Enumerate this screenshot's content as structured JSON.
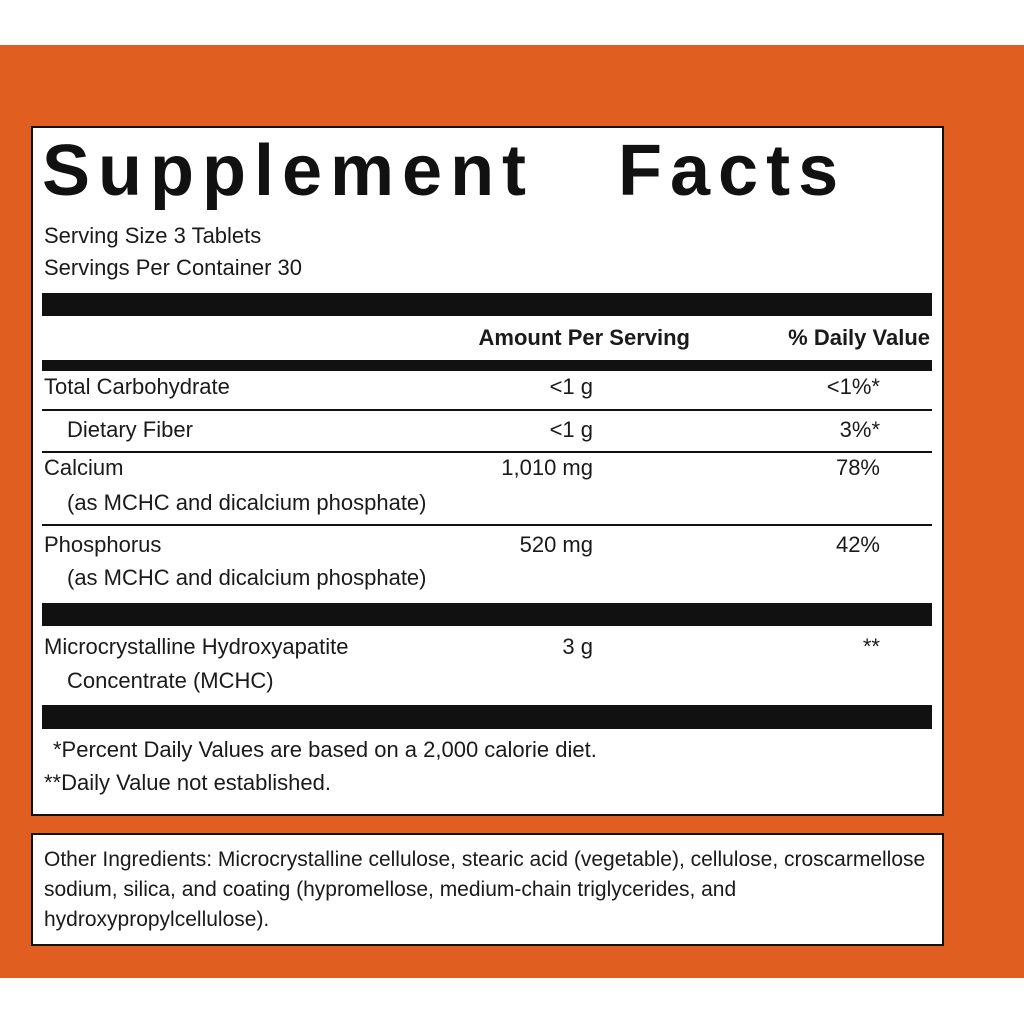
{
  "title": "Supplement Facts",
  "serving_size": "Serving Size 3 Tablets",
  "servings_per_container": "Servings Per Container 30",
  "header": {
    "amount": "Amount Per Serving",
    "daily_value": "% Daily Value"
  },
  "rows": [
    {
      "name": "Total Carbohydrate",
      "amount": "<1 g",
      "daily_value": "<1%*"
    },
    {
      "name": "Dietary Fiber",
      "amount": "<1 g",
      "daily_value": "3%*"
    },
    {
      "name": "Calcium",
      "note": "(as MCHC and dicalcium phosphate)",
      "amount": "1,010 mg",
      "daily_value": "78%"
    },
    {
      "name": "Phosphorus",
      "note": "(as MCHC and dicalcium phosphate)",
      "amount": "520 mg",
      "daily_value": "42%"
    },
    {
      "name": "Microcrystalline Hydroxyapatite",
      "note": "Concentrate (MCHC)",
      "amount": "3 g",
      "daily_value": "**"
    }
  ],
  "footnotes": [
    "*Percent Daily Values are based on a 2,000 calorie diet.",
    "**Daily Value not established."
  ],
  "other_ingredients": "Other Ingredients: Microcrystalline cellulose, stearic acid (vegetable), cellulose, croscarmellose sodium, silica, and coating (hypromellose, medium-chain triglycerides, and hydroxypropylcellulose)."
}
